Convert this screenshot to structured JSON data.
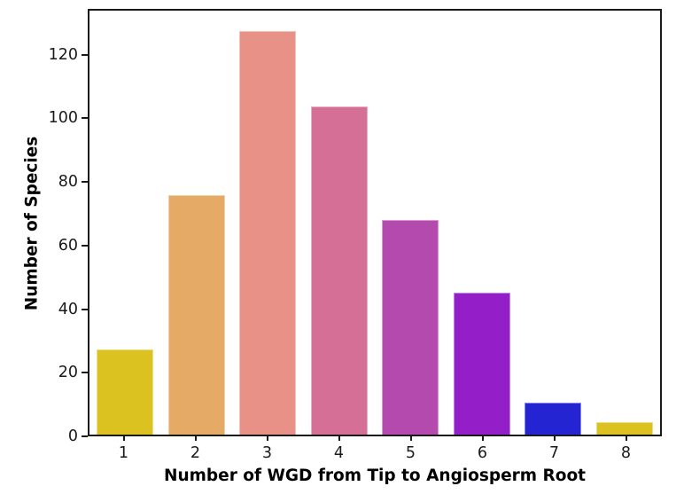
{
  "chart_data": {
    "type": "bar",
    "title": "",
    "xlabel": "Number of WGD from Tip to Angiosperm Root",
    "ylabel": "Number of Species",
    "categories": [
      "1",
      "2",
      "3",
      "4",
      "5",
      "6",
      "7",
      "8"
    ],
    "values": [
      27,
      76,
      128,
      104,
      68,
      45,
      10,
      4
    ],
    "bar_colors": [
      "#dcc220",
      "#e5ab66",
      "#e89186",
      "#d66f96",
      "#b44aad",
      "#941fc8",
      "#2424d3",
      "#dcc220"
    ],
    "ylim": [
      0,
      134.4
    ],
    "yticks": [
      0,
      20,
      40,
      60,
      80,
      100,
      120
    ],
    "grid": false,
    "legend": null,
    "bar_width_fraction": 0.8,
    "axis_color": "#1a1a1a",
    "background": "#ffffff"
  }
}
